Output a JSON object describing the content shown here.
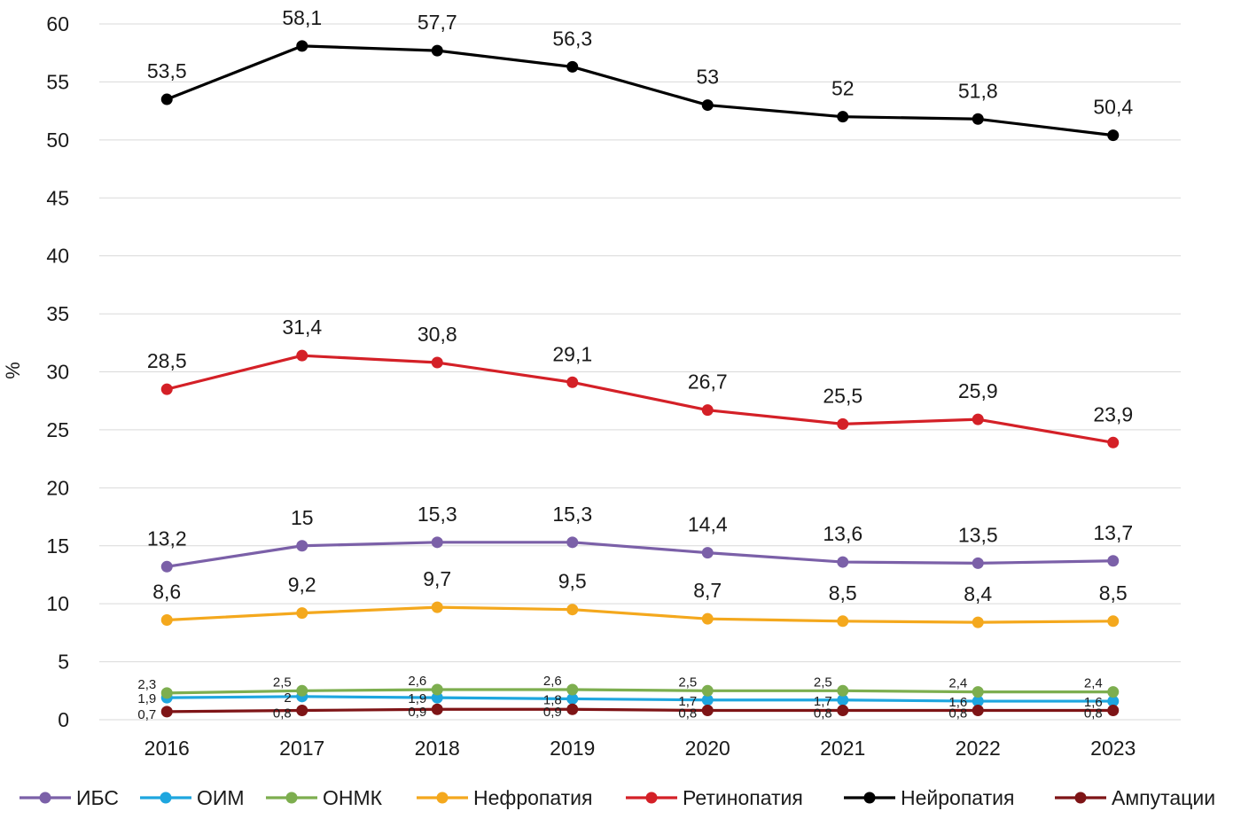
{
  "chart_data": {
    "type": "line",
    "title": "",
    "xlabel": "",
    "ylabel": "%",
    "ylim": [
      0,
      60
    ],
    "yticks": [
      0,
      5,
      10,
      15,
      20,
      25,
      30,
      35,
      40,
      45,
      50,
      55,
      60
    ],
    "grid": "horizontal",
    "legend_position": "bottom",
    "categories": [
      "2016",
      "2017",
      "2018",
      "2019",
      "2020",
      "2021",
      "2022",
      "2023"
    ],
    "series": [
      {
        "name": "ИБС",
        "color": "#7b60a8",
        "values": [
          13.2,
          15,
          15.3,
          15.3,
          14.4,
          13.6,
          13.5,
          13.7
        ],
        "labels": [
          "13,2",
          "15",
          "15,3",
          "15,3",
          "14,4",
          "13,6",
          "13,5",
          "13,7"
        ]
      },
      {
        "name": "ОИМ",
        "color": "#1ea6df",
        "values": [
          1.9,
          2,
          1.9,
          1.8,
          1.7,
          1.7,
          1.6,
          1.6
        ],
        "labels": [
          "1,9",
          "2",
          "1,9",
          "1,8",
          "1,7",
          "1,7",
          "1,6",
          "1,6"
        ]
      },
      {
        "name": "ОНМК",
        "color": "#7dae4f",
        "values": [
          2.3,
          2.5,
          2.6,
          2.6,
          2.5,
          2.5,
          2.4,
          2.4
        ],
        "labels": [
          "2,3",
          "2,5",
          "2,6",
          "2,6",
          "2,5",
          "2,5",
          "2,4",
          "2,4"
        ]
      },
      {
        "name": "Нефропатия",
        "color": "#f4a81d",
        "values": [
          8.6,
          9.2,
          9.7,
          9.5,
          8.7,
          8.5,
          8.4,
          8.5
        ],
        "labels": [
          "8,6",
          "9,2",
          "9,7",
          "9,5",
          "8,7",
          "8,5",
          "8,4",
          "8,5"
        ]
      },
      {
        "name": "Ретинопатия",
        "color": "#d42027",
        "values": [
          28.5,
          31.4,
          30.8,
          29.1,
          26.7,
          25.5,
          25.9,
          23.9
        ],
        "labels": [
          "28,5",
          "31,4",
          "30,8",
          "29,1",
          "26,7",
          "25,5",
          "25,9",
          "23,9"
        ]
      },
      {
        "name": "Нейропатия",
        "color": "#000000",
        "values": [
          53.5,
          58.1,
          57.7,
          56.3,
          53,
          52,
          51.8,
          50.4
        ],
        "labels": [
          "53,5",
          "58,1",
          "57,7",
          "56,3",
          "53",
          "52",
          "51,8",
          "50,4"
        ]
      },
      {
        "name": "Ампутации",
        "color": "#7e1416",
        "values": [
          0.7,
          0.8,
          0.9,
          0.9,
          0.8,
          0.8,
          0.8,
          0.8
        ],
        "labels": [
          "0,7",
          "0,8",
          "0,9",
          "0,9",
          "0,8",
          "0,8",
          "0,8",
          "0,8"
        ]
      }
    ]
  }
}
